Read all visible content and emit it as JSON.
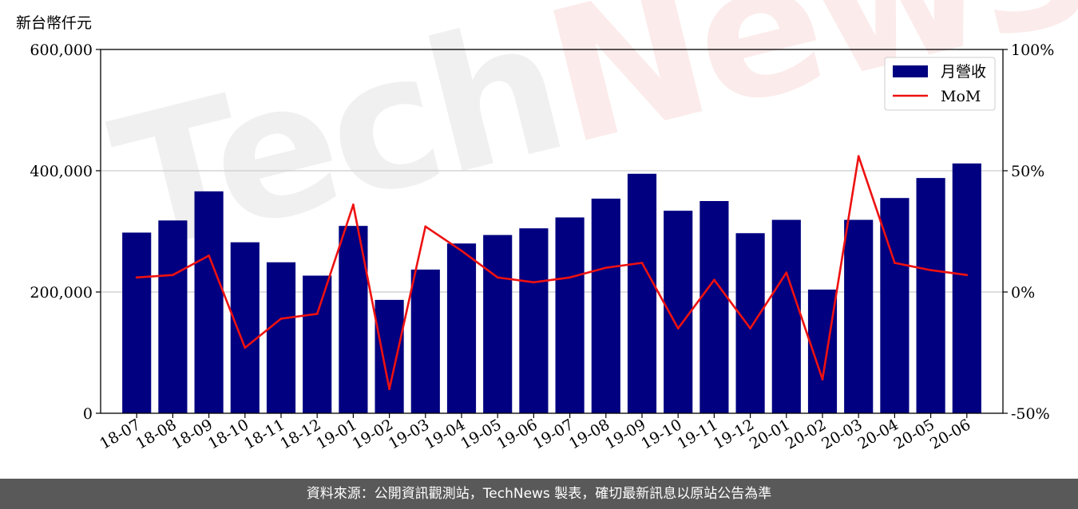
{
  "unit_label": "新台幣仟元",
  "footer_text": "資料來源：公開資訊觀測站，TechNews 製表，確切最新訊息以原站公告為準",
  "watermark": {
    "tech": "Tech",
    "news": "News"
  },
  "colors": {
    "bar": "#000080",
    "line": "#ee1111",
    "grid": "#cccccc",
    "axis": "#000000"
  },
  "chart_data": {
    "type": "bar+line",
    "categories": [
      "18-07",
      "18-08",
      "18-09",
      "18-10",
      "18-11",
      "18-12",
      "19-01",
      "19-02",
      "19-03",
      "19-04",
      "19-05",
      "19-06",
      "19-07",
      "19-08",
      "19-09",
      "19-10",
      "19-11",
      "19-12",
      "20-01",
      "20-02",
      "20-03",
      "20-04",
      "20-05",
      "20-06"
    ],
    "series": [
      {
        "name": "月營收",
        "type": "bar",
        "axis": "left",
        "values": [
          298000,
          318000,
          366000,
          282000,
          249000,
          227000,
          309000,
          187000,
          237000,
          280000,
          294000,
          305000,
          323000,
          354000,
          395000,
          334000,
          350000,
          297000,
          319000,
          204000,
          319000,
          355000,
          388000,
          412000
        ]
      },
      {
        "name": "MoM",
        "type": "line",
        "axis": "right",
        "values": [
          6,
          7,
          15,
          -23,
          -11,
          -9,
          36,
          -40,
          27,
          17,
          6,
          4,
          6,
          10,
          12,
          -15,
          5,
          -15,
          8,
          -36,
          56,
          12,
          9,
          7
        ]
      }
    ],
    "y_left": {
      "min": 0,
      "max": 600000,
      "ticks": [
        0,
        200000,
        400000,
        600000
      ],
      "tick_labels": [
        "0",
        "200,000",
        "400,000",
        "600,000"
      ]
    },
    "y_right": {
      "min": -50,
      "max": 100,
      "ticks": [
        -50,
        0,
        50,
        100
      ],
      "tick_labels": [
        "-50%",
        "0%",
        "50%",
        "100%"
      ]
    },
    "grid": "horizontal",
    "legend": {
      "position": "top-right",
      "entries": [
        "月營收",
        "MoM"
      ]
    }
  }
}
